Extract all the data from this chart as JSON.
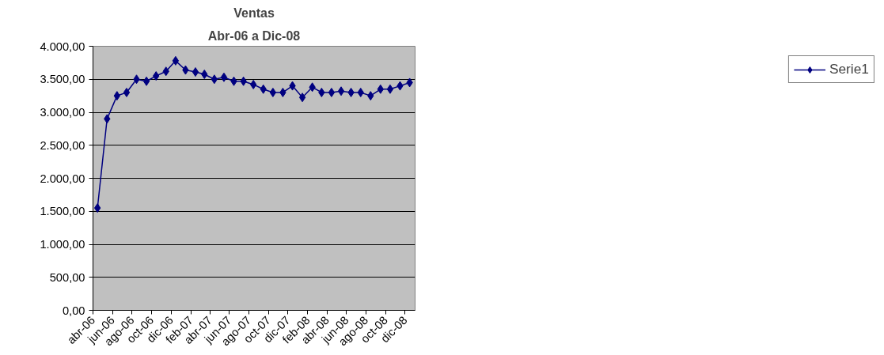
{
  "chart_data": {
    "type": "line",
    "title": "Ventas",
    "subtitle": "Abr-06 a Dic-08",
    "x": [
      "2006-04-15",
      "2006-05-15",
      "2006-06-15",
      "2006-07-15",
      "2006-08-15",
      "2006-09-15",
      "2006-10-15",
      "2006-11-15",
      "2006-12-15",
      "2007-01-15",
      "2007-02-15",
      "2007-03-15",
      "2007-04-15",
      "2007-05-15",
      "2007-06-15",
      "2007-07-15",
      "2007-08-15",
      "2007-09-15",
      "2007-10-15",
      "2007-11-15",
      "2007-12-15",
      "2008-01-15",
      "2008-02-15",
      "2008-03-15",
      "2008-04-15",
      "2008-05-15",
      "2008-06-15",
      "2008-07-15",
      "2008-08-15",
      "2008-09-15",
      "2008-10-15",
      "2008-11-15",
      "2008-12-15"
    ],
    "series": [
      {
        "name": "Serie1",
        "color": "#000080",
        "values": [
          1550,
          2900,
          3250,
          3300,
          3500,
          3470,
          3550,
          3620,
          3780,
          3640,
          3610,
          3575,
          3500,
          3530,
          3470,
          3470,
          3420,
          3350,
          3300,
          3300,
          3400,
          3225,
          3380,
          3300,
          3300,
          3320,
          3300,
          3300,
          3250,
          3350,
          3350,
          3400,
          3450
        ]
      }
    ],
    "xlim": [
      "2006-04",
      "2009-01"
    ],
    "xticks": [
      {
        "value": "2006-04",
        "label": "abr-06"
      },
      {
        "value": "2006-06",
        "label": "jun-06"
      },
      {
        "value": "2006-08",
        "label": "ago-06"
      },
      {
        "value": "2006-10",
        "label": "oct-06"
      },
      {
        "value": "2006-12",
        "label": "dic-06"
      },
      {
        "value": "2007-02",
        "label": "feb-07"
      },
      {
        "value": "2007-04",
        "label": "abr-07"
      },
      {
        "value": "2007-06",
        "label": "jun-07"
      },
      {
        "value": "2007-08",
        "label": "ago-07"
      },
      {
        "value": "2007-10",
        "label": "oct-07"
      },
      {
        "value": "2007-12",
        "label": "dic-07"
      },
      {
        "value": "2008-02",
        "label": "feb-08"
      },
      {
        "value": "2008-04",
        "label": "abr-08"
      },
      {
        "value": "2008-06",
        "label": "jun-08"
      },
      {
        "value": "2008-08",
        "label": "ago-08"
      },
      {
        "value": "2008-10",
        "label": "oct-08"
      },
      {
        "value": "2008-12",
        "label": "dic-08"
      }
    ],
    "ylim": [
      0,
      4000
    ],
    "yticks": [
      {
        "value": 0,
        "label": "0,00"
      },
      {
        "value": 500,
        "label": "500,00"
      },
      {
        "value": 1000,
        "label": "1.000,00"
      },
      {
        "value": 1500,
        "label": "1.500,00"
      },
      {
        "value": 2000,
        "label": "2.000,00"
      },
      {
        "value": 2500,
        "label": "2.500,00"
      },
      {
        "value": 3000,
        "label": "3.000,00"
      },
      {
        "value": 3500,
        "label": "3.500,00"
      },
      {
        "value": 4000,
        "label": "4.000,00"
      }
    ],
    "grid": "y",
    "legend": "right",
    "marker": "diamond",
    "line_style": "solid"
  }
}
